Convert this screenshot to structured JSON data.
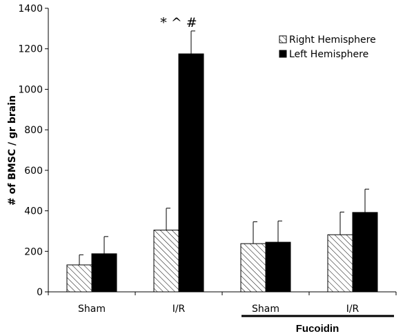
{
  "chart_data": {
    "type": "bar",
    "categories": [
      "Sham",
      "I/R",
      "Sham",
      "I/R"
    ],
    "group_label": "Fucoidin",
    "group_span": [
      2,
      3
    ],
    "ylabel": "# of BMSC / gr brain",
    "ylim": [
      0,
      1400
    ],
    "yticks": [
      "0",
      "200",
      "400",
      "600",
      "800",
      "1000",
      "1200",
      "1400"
    ],
    "ytick_values": [
      0,
      200,
      400,
      600,
      800,
      1000,
      1200,
      1400
    ],
    "series": [
      {
        "name": "Right Hemisphere",
        "values": [
          133,
          305,
          238,
          282
        ],
        "errors": [
          50,
          108,
          108,
          112
        ],
        "fill": "hatched"
      },
      {
        "name": "Left Hemisphere",
        "values": [
          188,
          1175,
          245,
          392
        ],
        "errors": [
          85,
          113,
          105,
          115
        ],
        "fill": "#000000"
      }
    ],
    "annotations": [
      {
        "text": "* ^ #",
        "category_index": 1
      }
    ],
    "legend_position": "top-right"
  }
}
